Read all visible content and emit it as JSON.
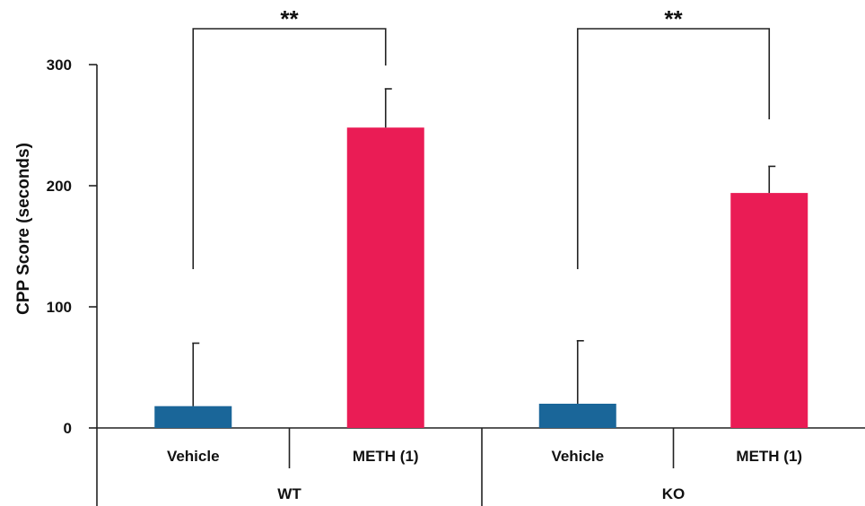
{
  "chart_data": {
    "type": "bar",
    "ylabel": "CPP Score (seconds)",
    "ylim": [
      0,
      300
    ],
    "yticks": [
      0,
      100,
      200,
      300
    ],
    "groups": [
      {
        "label": "WT",
        "bars": [
          {
            "category": "Vehicle",
            "value": 18,
            "error": 52,
            "color": "#1a6699"
          },
          {
            "category": "METH (1)",
            "value": 248,
            "error": 32,
            "color": "#ea1c55"
          }
        ],
        "significance": "**"
      },
      {
        "label": "KO",
        "bars": [
          {
            "category": "Vehicle",
            "value": 20,
            "error": 52,
            "color": "#1a6699"
          },
          {
            "category": "METH (1)",
            "value": 194,
            "error": 22,
            "color": "#ea1c55"
          }
        ],
        "significance": "**"
      }
    ],
    "grid": false,
    "legend": "none"
  }
}
